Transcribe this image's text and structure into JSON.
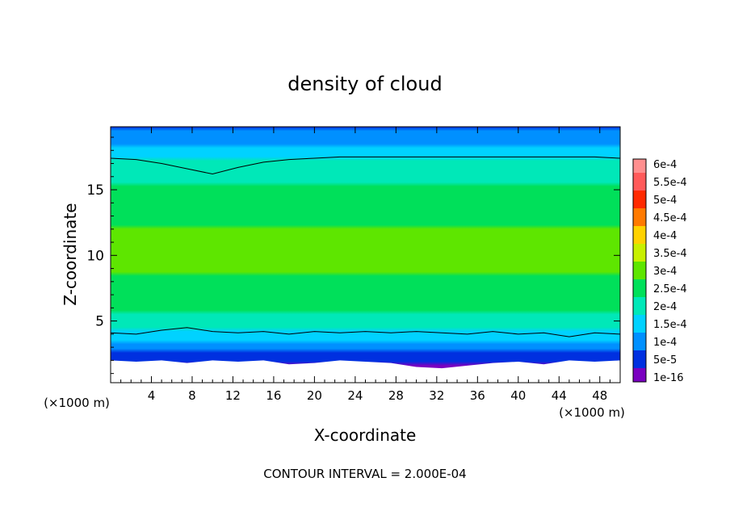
{
  "chart_data": {
    "type": "heatmap",
    "title": "density of cloud",
    "xlabel": "X-coordinate",
    "ylabel": "Z-coordinate",
    "x_unit_left": "(×1000 m)",
    "x_unit_right": "(×1000 m)",
    "xlim": [
      0,
      50
    ],
    "ylim": [
      0.3,
      19.8
    ],
    "x_ticks": [
      4,
      8,
      12,
      16,
      20,
      24,
      28,
      32,
      36,
      40,
      44,
      48
    ],
    "y_ticks": [
      5,
      10,
      15
    ],
    "colorbar": {
      "labels": [
        "6e-4",
        "5.5e-4",
        "5e-4",
        "4.5e-4",
        "4e-4",
        "3.5e-4",
        "3e-4",
        "2.5e-4",
        "2e-4",
        "1.5e-4",
        "1e-4",
        "5e-5",
        "1e-16"
      ],
      "colors": [
        "#ff8f8f",
        "#ff5a5a",
        "#ff2a00",
        "#ff7a00",
        "#ffd200",
        "#c8f000",
        "#5ee600",
        "#00e05a",
        "#00e8b8",
        "#00d2ff",
        "#0090ff",
        "#0030e0",
        "#7a00c0"
      ]
    },
    "contour_interval_label": "CONTOUR INTERVAL = 2.000E-04",
    "cloud_bottom_km": [
      2.0,
      1.9,
      2.0,
      1.8,
      2.0,
      1.9,
      2.0,
      1.7,
      1.8,
      2.0,
      1.9,
      1.8,
      1.5,
      1.4,
      1.6,
      1.8,
      1.9,
      1.7,
      2.0,
      1.9,
      2.0
    ],
    "contour_lower_km": [
      4.1,
      4.0,
      4.3,
      4.5,
      4.2,
      4.1,
      4.2,
      4.0,
      4.2,
      4.1,
      4.2,
      4.1,
      4.2,
      4.1,
      4.0,
      4.2,
      4.0,
      4.1,
      3.8,
      4.1,
      4.0
    ],
    "contour_upper_km": [
      17.4,
      17.3,
      17.0,
      16.6,
      16.2,
      16.7,
      17.1,
      17.3,
      17.4,
      17.5,
      17.5,
      17.5,
      17.5,
      17.5,
      17.5,
      17.5,
      17.5,
      17.5,
      17.5,
      17.5,
      17.4
    ],
    "profile_z_km": [
      0.5,
      2.0,
      3.0,
      4.0,
      6.0,
      9.0,
      12.0,
      15.0,
      17.0,
      18.0,
      19.0,
      19.8
    ],
    "profile_density": [
      0.0,
      6e-05,
      0.00012,
      0.00019,
      0.00026,
      0.000305,
      0.0003,
      0.00026,
      0.00021,
      0.00017,
      0.00012,
      9e-05
    ]
  }
}
